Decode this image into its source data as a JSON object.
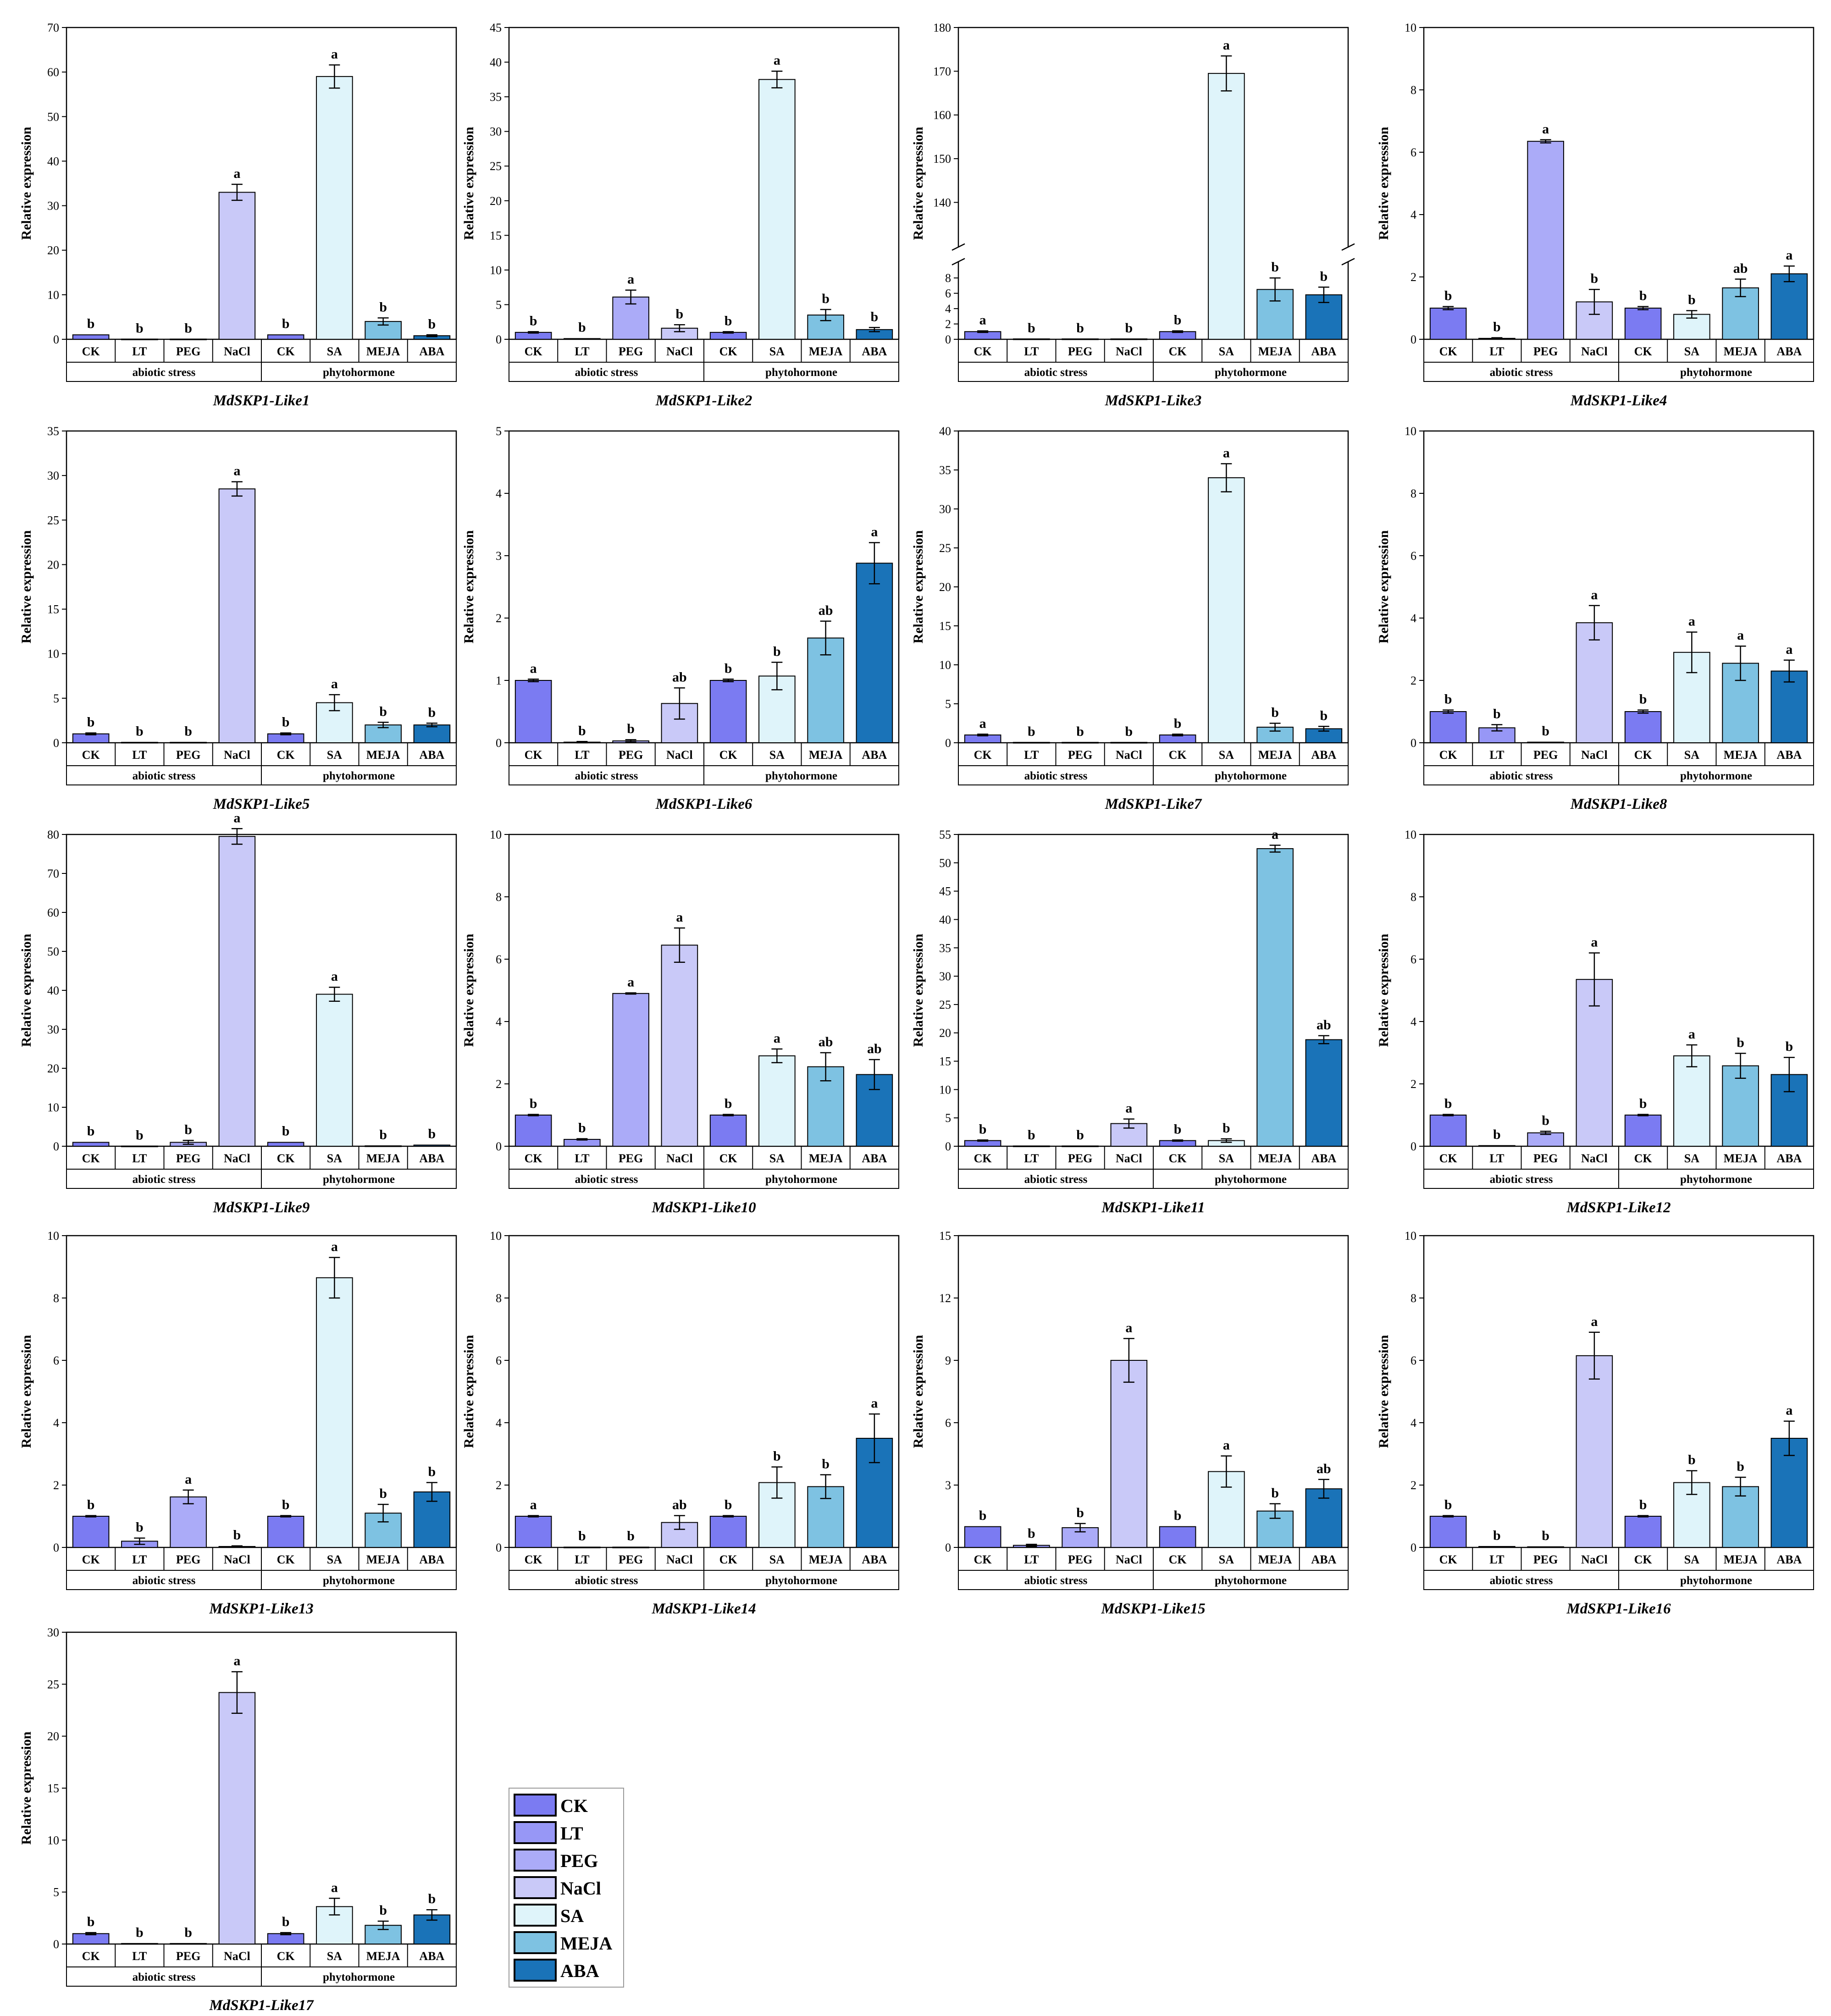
{
  "y_axis_label": "Relative expression",
  "group_labels": [
    "abiotic stress",
    "phytohormone"
  ],
  "category_sets": {
    "abiotic stress": [
      "CK",
      "LT",
      "PEG",
      "NaCl"
    ],
    "phytohormone": [
      "CK",
      "SA",
      "MEJA",
      "ABA"
    ]
  },
  "colors": {
    "CK": "#7b7bf2",
    "LT": "#9797f6",
    "PEG": "#ababf8",
    "NaCl": "#c9c9f8",
    "SA": "#dff4fa",
    "MEJA": "#7ec2e2",
    "ABA": "#1a73b8"
  },
  "legend": {
    "entries": [
      "CK",
      "LT",
      "PEG",
      "NaCl",
      "SA",
      "MEJA",
      "ABA"
    ],
    "placement": "bottom-center"
  },
  "chart_data": [
    {
      "type": "bar",
      "title": "MdSKP1-Like1",
      "ylabel": "Relative expression",
      "ylim": [
        0,
        70
      ],
      "yticks": [
        0,
        10,
        20,
        30,
        40,
        50,
        60,
        70
      ],
      "categories": [
        "CK",
        "LT",
        "PEG",
        "NaCl",
        "CK",
        "SA",
        "MEJA",
        "ABA"
      ],
      "values": [
        1,
        0.05,
        0.05,
        33,
        1,
        59,
        4,
        0.8
      ],
      "errors": [
        0.1,
        0.02,
        0.02,
        1.8,
        0.1,
        2.6,
        0.8,
        0.2
      ],
      "letters": [
        "b",
        "b",
        "b",
        "a",
        "b",
        "a",
        "b",
        "b"
      ]
    },
    {
      "type": "bar",
      "title": "MdSKP1-Like2",
      "ylabel": "Relative expression",
      "ylim": [
        0,
        45
      ],
      "yticks": [
        0,
        5,
        10,
        15,
        20,
        25,
        30,
        35,
        40,
        45
      ],
      "categories": [
        "CK",
        "LT",
        "PEG",
        "NaCl",
        "CK",
        "SA",
        "MEJA",
        "ABA"
      ],
      "values": [
        1,
        0.1,
        6.1,
        1.6,
        1,
        37.5,
        3.5,
        1.4
      ],
      "errors": [
        0.1,
        0.05,
        1.0,
        0.5,
        0.1,
        1.2,
        0.8,
        0.3
      ],
      "letters": [
        "b",
        "b",
        "a",
        "b",
        "b",
        "a",
        "b",
        "b"
      ]
    },
    {
      "type": "bar",
      "title": "MdSKP1-Like3",
      "ylabel": "Relative expression",
      "axis_break": true,
      "ylim": [
        0,
        180
      ],
      "yticks": [
        0,
        2,
        4,
        6,
        8,
        140,
        150,
        160,
        170,
        180
      ],
      "categories": [
        "CK",
        "LT",
        "PEG",
        "NaCl",
        "CK",
        "SA",
        "MEJA",
        "ABA"
      ],
      "values": [
        1,
        0.05,
        0.05,
        0.05,
        1,
        169.5,
        6.5,
        5.8
      ],
      "errors": [
        0.1,
        0.02,
        0.02,
        0.02,
        0.1,
        4.0,
        1.5,
        1.0
      ],
      "letters": [
        "a",
        "b",
        "b",
        "b",
        "b",
        "a",
        "b",
        "b"
      ]
    },
    {
      "type": "bar",
      "title": "MdSKP1-Like4",
      "ylabel": "Relative expression",
      "ylim": [
        0,
        10
      ],
      "yticks": [
        0,
        2,
        4,
        6,
        8,
        10
      ],
      "categories": [
        "CK",
        "LT",
        "PEG",
        "NaCl",
        "CK",
        "SA",
        "MEJA",
        "ABA"
      ],
      "values": [
        1,
        0.03,
        6.35,
        1.2,
        1,
        0.8,
        1.65,
        2.1
      ],
      "errors": [
        0.05,
        0.02,
        0.05,
        0.4,
        0.05,
        0.12,
        0.28,
        0.25
      ],
      "letters": [
        "b",
        "b",
        "a",
        "b",
        "b",
        "b",
        "ab",
        "a"
      ]
    },
    {
      "type": "bar",
      "title": "MdSKP1-Like5",
      "ylabel": "Relative expression",
      "ylim": [
        0,
        35
      ],
      "yticks": [
        0,
        5,
        10,
        15,
        20,
        25,
        30,
        35
      ],
      "categories": [
        "CK",
        "LT",
        "PEG",
        "NaCl",
        "CK",
        "SA",
        "MEJA",
        "ABA"
      ],
      "values": [
        1,
        0.05,
        0.05,
        28.5,
        1,
        4.5,
        2.0,
        2.0
      ],
      "errors": [
        0.1,
        0.02,
        0.02,
        0.8,
        0.1,
        0.9,
        0.3,
        0.2
      ],
      "letters": [
        "b",
        "b",
        "b",
        "a",
        "b",
        "a",
        "b",
        "b"
      ]
    },
    {
      "type": "bar",
      "title": "MdSKP1-Like6",
      "ylabel": "Relative expression",
      "ylim": [
        0,
        5
      ],
      "yticks": [
        0,
        1,
        2,
        3,
        4,
        5
      ],
      "categories": [
        "CK",
        "LT",
        "PEG",
        "NaCl",
        "CK",
        "SA",
        "MEJA",
        "ABA"
      ],
      "values": [
        1,
        0.01,
        0.03,
        0.63,
        1,
        1.07,
        1.68,
        2.88
      ],
      "errors": [
        0.02,
        0.01,
        0.02,
        0.25,
        0.02,
        0.22,
        0.27,
        0.33
      ],
      "letters": [
        "a",
        "b",
        "b",
        "ab",
        "b",
        "b",
        "ab",
        "a"
      ]
    },
    {
      "type": "bar",
      "title": "MdSKP1-Like7",
      "ylabel": "Relative expression",
      "ylim": [
        0,
        40
      ],
      "yticks": [
        0,
        5,
        10,
        15,
        20,
        25,
        30,
        35,
        40
      ],
      "categories": [
        "CK",
        "LT",
        "PEG",
        "NaCl",
        "CK",
        "SA",
        "MEJA",
        "ABA"
      ],
      "values": [
        1,
        0.05,
        0.05,
        0.05,
        1,
        34,
        2.0,
        1.8
      ],
      "errors": [
        0.1,
        0.02,
        0.02,
        0.02,
        0.1,
        1.8,
        0.5,
        0.3
      ],
      "letters": [
        "a",
        "b",
        "b",
        "b",
        "b",
        "a",
        "b",
        "b"
      ]
    },
    {
      "type": "bar",
      "title": "MdSKP1-Like8",
      "ylabel": "Relative expression",
      "ylim": [
        0,
        10
      ],
      "yticks": [
        0,
        2,
        4,
        6,
        8,
        10
      ],
      "categories": [
        "CK",
        "LT",
        "PEG",
        "NaCl",
        "CK",
        "SA",
        "MEJA",
        "ABA"
      ],
      "values": [
        1,
        0.48,
        0.02,
        3.85,
        1,
        2.9,
        2.55,
        2.3
      ],
      "errors": [
        0.05,
        0.1,
        0.01,
        0.55,
        0.05,
        0.65,
        0.55,
        0.35
      ],
      "letters": [
        "b",
        "b",
        "b",
        "a",
        "b",
        "a",
        "a",
        "a"
      ]
    },
    {
      "type": "bar",
      "title": "MdSKP1-Like9",
      "ylabel": "Relative expression",
      "ylim": [
        0,
        80
      ],
      "yticks": [
        0,
        10,
        20,
        30,
        40,
        50,
        60,
        70,
        80
      ],
      "categories": [
        "CK",
        "LT",
        "PEG",
        "NaCl",
        "CK",
        "SA",
        "MEJA",
        "ABA"
      ],
      "values": [
        1,
        0.05,
        1,
        79.5,
        1,
        39,
        0.1,
        0.3
      ],
      "errors": [
        0.1,
        0.02,
        0.5,
        2.0,
        0.1,
        1.8,
        0.05,
        0.1
      ],
      "letters": [
        "b",
        "b",
        "b",
        "a",
        "b",
        "a",
        "b",
        "b"
      ]
    },
    {
      "type": "bar",
      "title": "MdSKP1-Like10",
      "ylabel": "Relative expression",
      "ylim": [
        0,
        10
      ],
      "yticks": [
        0,
        2,
        4,
        6,
        8,
        10
      ],
      "categories": [
        "CK",
        "LT",
        "PEG",
        "NaCl",
        "CK",
        "SA",
        "MEJA",
        "ABA"
      ],
      "values": [
        1,
        0.22,
        4.9,
        6.45,
        1,
        2.9,
        2.55,
        2.3
      ],
      "errors": [
        0.02,
        0.02,
        0.02,
        0.55,
        0.02,
        0.22,
        0.45,
        0.48
      ],
      "letters": [
        "b",
        "b",
        "a",
        "a",
        "b",
        "a",
        "ab",
        "ab"
      ]
    },
    {
      "type": "bar",
      "title": "MdSKP1-Like11",
      "ylabel": "Relative expression",
      "ylim": [
        0,
        55
      ],
      "yticks": [
        0,
        5,
        10,
        15,
        20,
        25,
        30,
        35,
        40,
        45,
        50,
        55
      ],
      "categories": [
        "CK",
        "LT",
        "PEG",
        "NaCl",
        "CK",
        "SA",
        "MEJA",
        "ABA"
      ],
      "values": [
        1,
        0.05,
        0.05,
        4.0,
        1,
        1.0,
        52.5,
        18.8
      ],
      "errors": [
        0.1,
        0.02,
        0.02,
        0.8,
        0.1,
        0.3,
        0.6,
        0.7
      ],
      "letters": [
        "b",
        "b",
        "b",
        "a",
        "b",
        "b",
        "a",
        "ab"
      ]
    },
    {
      "type": "bar",
      "title": "MdSKP1-Like12",
      "ylabel": "Relative expression",
      "ylim": [
        0,
        10
      ],
      "yticks": [
        0,
        2,
        4,
        6,
        8,
        10
      ],
      "categories": [
        "CK",
        "LT",
        "PEG",
        "NaCl",
        "CK",
        "SA",
        "MEJA",
        "ABA"
      ],
      "values": [
        1,
        0.02,
        0.43,
        5.35,
        1,
        2.9,
        2.58,
        2.3
      ],
      "errors": [
        0.02,
        0.01,
        0.05,
        0.85,
        0.02,
        0.35,
        0.4,
        0.55
      ],
      "letters": [
        "b",
        "b",
        "b",
        "a",
        "b",
        "a",
        "b",
        "b"
      ]
    },
    {
      "type": "bar",
      "title": "MdSKP1-Like13",
      "ylabel": "Relative expression",
      "ylim": [
        0,
        10
      ],
      "yticks": [
        0,
        2,
        4,
        6,
        8,
        10
      ],
      "categories": [
        "CK",
        "LT",
        "PEG",
        "NaCl",
        "CK",
        "SA",
        "MEJA",
        "ABA"
      ],
      "values": [
        1,
        0.2,
        1.62,
        0.03,
        1,
        8.65,
        1.1,
        1.78
      ],
      "errors": [
        0.02,
        0.1,
        0.22,
        0.02,
        0.02,
        0.65,
        0.28,
        0.3
      ],
      "letters": [
        "b",
        "b",
        "a",
        "b",
        "b",
        "a",
        "b",
        "b"
      ]
    },
    {
      "type": "bar",
      "title": "MdSKP1-Like14",
      "ylabel": "Relative expression",
      "ylim": [
        0,
        10
      ],
      "yticks": [
        0,
        2,
        4,
        6,
        8,
        10
      ],
      "categories": [
        "CK",
        "LT",
        "PEG",
        "NaCl",
        "CK",
        "SA",
        "MEJA",
        "ABA"
      ],
      "values": [
        1,
        0.01,
        0.01,
        0.8,
        1,
        2.08,
        1.95,
        3.5
      ],
      "errors": [
        0.02,
        0.01,
        0.01,
        0.22,
        0.02,
        0.5,
        0.38,
        0.78
      ],
      "letters": [
        "a",
        "b",
        "b",
        "ab",
        "b",
        "b",
        "b",
        "a"
      ]
    },
    {
      "type": "bar",
      "title": "MdSKP1-Like15",
      "ylabel": "Relative expression",
      "ylim": [
        0,
        15
      ],
      "yticks": [
        0,
        3,
        6,
        9,
        12,
        15
      ],
      "categories": [
        "CK",
        "LT",
        "PEG",
        "NaCl",
        "CK",
        "SA",
        "MEJA",
        "ABA"
      ],
      "values": [
        1,
        0.1,
        0.95,
        9.0,
        1,
        3.65,
        1.75,
        2.82
      ],
      "errors": [
        0.02,
        0.05,
        0.2,
        1.05,
        0.02,
        0.75,
        0.35,
        0.45
      ],
      "letters": [
        "b",
        "b",
        "b",
        "a",
        "b",
        "a",
        "b",
        "ab"
      ]
    },
    {
      "type": "bar",
      "title": "MdSKP1-Like16",
      "ylabel": "Relative expression",
      "ylim": [
        0,
        10
      ],
      "yticks": [
        0,
        2,
        4,
        6,
        8,
        10
      ],
      "categories": [
        "CK",
        "LT",
        "PEG",
        "NaCl",
        "CK",
        "SA",
        "MEJA",
        "ABA"
      ],
      "values": [
        1,
        0.03,
        0.02,
        6.15,
        1,
        2.08,
        1.95,
        3.5
      ],
      "errors": [
        0.02,
        0.01,
        0.01,
        0.75,
        0.02,
        0.38,
        0.3,
        0.55
      ],
      "letters": [
        "b",
        "b",
        "b",
        "a",
        "b",
        "b",
        "b",
        "a"
      ]
    },
    {
      "type": "bar",
      "title": "MdSKP1-Like17",
      "ylabel": "Relative expression",
      "ylim": [
        0,
        30
      ],
      "yticks": [
        0,
        5,
        10,
        15,
        20,
        25,
        30
      ],
      "categories": [
        "CK",
        "LT",
        "PEG",
        "NaCl",
        "CK",
        "SA",
        "MEJA",
        "ABA"
      ],
      "values": [
        1,
        0.05,
        0.05,
        24.2,
        1,
        3.6,
        1.8,
        2.8
      ],
      "errors": [
        0.1,
        0.02,
        0.02,
        2.0,
        0.1,
        0.8,
        0.4,
        0.5
      ],
      "letters": [
        "b",
        "b",
        "b",
        "a",
        "b",
        "a",
        "b",
        "b"
      ]
    }
  ]
}
